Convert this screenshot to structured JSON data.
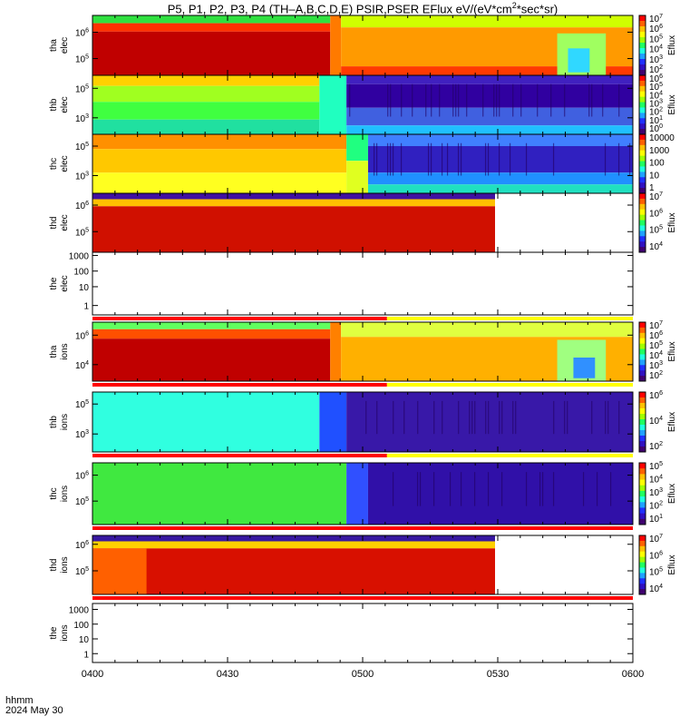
{
  "title": {
    "prefix": "P5, P1, P2, P3, P4 (TH–A,B,C,D,E) PSIR,PSER EFlux eV/(eV*cm",
    "sup": "2",
    "suffix": "*sec*sr)"
  },
  "footer": {
    "line1": "hhmm",
    "line2": "2024 May 30"
  },
  "chart_data": {
    "type": "heatmap",
    "x_axis": {
      "range": [
        "0400",
        "0600"
      ],
      "ticks": [
        "0400",
        "0430",
        "0500",
        "0530",
        "0600"
      ]
    },
    "colors": {
      "red": "#ff0000",
      "yellow": "#ffff00",
      "frame": "#000000"
    },
    "panels": [
      {
        "name": "tha-elec",
        "ylabel_top": "tha",
        "ylabel_bottom": "elec",
        "yticks": [
          {
            "base": "10",
            "exp": "6",
            "f": 0.28
          },
          {
            "base": "10",
            "exp": "5",
            "f": 0.72
          }
        ],
        "colorbar": {
          "label": "Eflux",
          "ticks": [
            {
              "base": "10",
              "exp": "7"
            },
            {
              "base": "10",
              "exp": "6"
            },
            {
              "base": "10",
              "exp": "5"
            },
            {
              "base": "10",
              "exp": "4"
            },
            {
              "base": "10",
              "exp": "3"
            },
            {
              "base": "10",
              "exp": "2"
            }
          ]
        },
        "bars": [],
        "regions": [
          {
            "x0": 0.0,
            "x1": 0.44,
            "y0": 0.0,
            "y1": 0.13,
            "color": "#30e040"
          },
          {
            "x0": 0.0,
            "x1": 0.44,
            "y0": 0.13,
            "y1": 0.27,
            "color": "#ff3000"
          },
          {
            "x0": 0.0,
            "x1": 0.44,
            "y0": 0.27,
            "y1": 1.0,
            "color": "#c00000"
          },
          {
            "x0": 0.44,
            "x1": 0.46,
            "y0": 0.0,
            "y1": 1.0,
            "color": "#ff7a00"
          },
          {
            "x0": 0.46,
            "x1": 1.0,
            "y0": 0.0,
            "y1": 0.2,
            "color": "#d0ff00"
          },
          {
            "x0": 0.46,
            "x1": 1.0,
            "y0": 0.2,
            "y1": 0.85,
            "color": "#ff9a00"
          },
          {
            "x0": 0.46,
            "x1": 1.0,
            "y0": 0.85,
            "y1": 1.0,
            "color": "#ff3a00"
          },
          {
            "x0": 0.86,
            "x1": 0.95,
            "y0": 0.3,
            "y1": 1.0,
            "color": "#a0ff60"
          },
          {
            "x0": 0.88,
            "x1": 0.92,
            "y0": 0.55,
            "y1": 0.95,
            "color": "#30d8ff"
          }
        ]
      },
      {
        "name": "thb-elec",
        "ylabel_top": "thb",
        "ylabel_bottom": "elec",
        "yticks": [
          {
            "base": "10",
            "exp": "5",
            "f": 0.22
          },
          {
            "base": "10",
            "exp": "3",
            "f": 0.72
          }
        ],
        "colorbar": {
          "label": "Eflux",
          "ticks": [
            {
              "base": "10",
              "exp": "6"
            },
            {
              "base": "10",
              "exp": "5"
            },
            {
              "base": "10",
              "exp": "4"
            },
            {
              "base": "10",
              "exp": "3"
            },
            {
              "base": "10",
              "exp": "2"
            },
            {
              "base": "10",
              "exp": "1"
            },
            {
              "base": "10",
              "exp": "0"
            }
          ]
        },
        "bars": [],
        "regions": [
          {
            "x0": 0.0,
            "x1": 0.42,
            "y0": 0.0,
            "y1": 0.18,
            "color": "#ffd000"
          },
          {
            "x0": 0.0,
            "x1": 0.42,
            "y0": 0.18,
            "y1": 0.45,
            "color": "#a0ff20"
          },
          {
            "x0": 0.0,
            "x1": 0.42,
            "y0": 0.45,
            "y1": 0.75,
            "color": "#40ff40"
          },
          {
            "x0": 0.0,
            "x1": 0.42,
            "y0": 0.75,
            "y1": 1.0,
            "color": "#20e0a0"
          },
          {
            "x0": 0.42,
            "x1": 0.47,
            "y0": 0.0,
            "y1": 1.0,
            "color": "#20ffc0"
          },
          {
            "x0": 0.47,
            "x1": 1.0,
            "y0": 0.0,
            "y1": 0.15,
            "color": "#4020c0"
          },
          {
            "x0": 0.47,
            "x1": 1.0,
            "y0": 0.15,
            "y1": 0.55,
            "color": "#3000a0"
          },
          {
            "x0": 0.47,
            "x1": 1.0,
            "y0": 0.55,
            "y1": 0.85,
            "color": "#4060e0"
          },
          {
            "x0": 0.47,
            "x1": 1.0,
            "y0": 0.85,
            "y1": 1.0,
            "color": "#20c0ff"
          }
        ]
      },
      {
        "name": "thc-elec",
        "ylabel_top": "thc",
        "ylabel_bottom": "elec",
        "yticks": [
          {
            "base": "10",
            "exp": "5",
            "f": 0.2
          },
          {
            "base": "10",
            "exp": "3",
            "f": 0.7
          }
        ],
        "colorbar": {
          "label": "",
          "ticks": [
            {
              "text": "10000"
            },
            {
              "text": "1000"
            },
            {
              "text": "100"
            },
            {
              "text": "10"
            },
            {
              "text": "1"
            }
          ]
        },
        "bars": [],
        "regions": [
          {
            "x0": 0.0,
            "x1": 0.47,
            "y0": 0.0,
            "y1": 0.25,
            "color": "#ff9000"
          },
          {
            "x0": 0.0,
            "x1": 0.47,
            "y0": 0.25,
            "y1": 0.65,
            "color": "#ffc800"
          },
          {
            "x0": 0.0,
            "x1": 0.47,
            "y0": 0.65,
            "y1": 1.0,
            "color": "#ffff20"
          },
          {
            "x0": 0.47,
            "x1": 0.51,
            "y0": 0.0,
            "y1": 0.45,
            "color": "#20ff80"
          },
          {
            "x0": 0.47,
            "x1": 0.51,
            "y0": 0.45,
            "y1": 1.0,
            "color": "#e0ff20"
          },
          {
            "x0": 0.51,
            "x1": 1.0,
            "y0": 0.0,
            "y1": 0.2,
            "color": "#4080ff"
          },
          {
            "x0": 0.51,
            "x1": 1.0,
            "y0": 0.2,
            "y1": 0.65,
            "color": "#3020c0"
          },
          {
            "x0": 0.51,
            "x1": 1.0,
            "y0": 0.65,
            "y1": 0.85,
            "color": "#2090ff"
          },
          {
            "x0": 0.51,
            "x1": 1.0,
            "y0": 0.85,
            "y1": 1.0,
            "color": "#20e0c0"
          }
        ]
      },
      {
        "name": "thd-elec",
        "ylabel_top": "thd",
        "ylabel_bottom": "elec",
        "yticks": [
          {
            "base": "10",
            "exp": "6",
            "f": 0.2
          },
          {
            "base": "10",
            "exp": "5",
            "f": 0.65
          }
        ],
        "colorbar": {
          "label": "Eflux",
          "ticks": [
            {
              "base": "10",
              "exp": "7"
            },
            {
              "base": "10",
              "exp": "6"
            },
            {
              "base": "10",
              "exp": "5"
            },
            {
              "base": "10",
              "exp": "4"
            }
          ]
        },
        "bars": [],
        "regions": [
          {
            "x0": 0.0,
            "x1": 0.745,
            "y0": 0.0,
            "y1": 0.1,
            "color": "#4010a0"
          },
          {
            "x0": 0.0,
            "x1": 0.745,
            "y0": 0.1,
            "y1": 0.22,
            "color": "#ffc000"
          },
          {
            "x0": 0.0,
            "x1": 0.745,
            "y0": 0.22,
            "y1": 1.0,
            "color": "#d01000"
          },
          {
            "x0": 0.745,
            "x1": 1.0,
            "y0": 0.0,
            "y1": 1.0,
            "color": "#ffffff"
          }
        ]
      },
      {
        "name": "the-elec",
        "ylabel_top": "the",
        "ylabel_bottom": "elec",
        "yticks": [
          {
            "text": "1000",
            "f": 0.05
          },
          {
            "text": "100",
            "f": 0.3
          },
          {
            "text": "10",
            "f": 0.55
          },
          {
            "text": "1",
            "f": 0.85
          }
        ],
        "colorbar": null,
        "bars": [
          {
            "x0": 0.0,
            "x1": 0.545,
            "color": "#ff0000"
          },
          {
            "x0": 0.545,
            "x1": 1.0,
            "color": "#ffff00"
          }
        ],
        "regions": []
      },
      {
        "name": "tha-ions",
        "ylabel_top": "tha",
        "ylabel_bottom": "ions",
        "yticks": [
          {
            "base": "10",
            "exp": "6",
            "f": 0.22
          },
          {
            "base": "10",
            "exp": "4",
            "f": 0.72
          }
        ],
        "colorbar": {
          "label": "Eflux",
          "ticks": [
            {
              "base": "10",
              "exp": "7"
            },
            {
              "base": "10",
              "exp": "6"
            },
            {
              "base": "10",
              "exp": "5"
            },
            {
              "base": "10",
              "exp": "4"
            },
            {
              "base": "10",
              "exp": "3"
            },
            {
              "base": "10",
              "exp": "2"
            }
          ]
        },
        "bars": [
          {
            "x0": 0.0,
            "x1": 0.545,
            "color": "#ff0000"
          },
          {
            "x0": 0.545,
            "x1": 1.0,
            "color": "#ffff00"
          }
        ],
        "regions": [
          {
            "x0": 0.0,
            "x1": 0.44,
            "y0": 0.0,
            "y1": 0.12,
            "color": "#60ff60"
          },
          {
            "x0": 0.0,
            "x1": 0.44,
            "y0": 0.12,
            "y1": 0.28,
            "color": "#ff5000"
          },
          {
            "x0": 0.0,
            "x1": 0.44,
            "y0": 0.28,
            "y1": 1.0,
            "color": "#c00000"
          },
          {
            "x0": 0.44,
            "x1": 0.46,
            "y0": 0.0,
            "y1": 1.0,
            "color": "#ff8000"
          },
          {
            "x0": 0.46,
            "x1": 1.0,
            "y0": 0.0,
            "y1": 0.25,
            "color": "#e0ff40"
          },
          {
            "x0": 0.46,
            "x1": 1.0,
            "y0": 0.25,
            "y1": 1.0,
            "color": "#ffb000"
          },
          {
            "x0": 0.86,
            "x1": 0.95,
            "y0": 0.3,
            "y1": 1.0,
            "color": "#a0ff80"
          },
          {
            "x0": 0.89,
            "x1": 0.93,
            "y0": 0.6,
            "y1": 0.95,
            "color": "#3090ff"
          }
        ]
      },
      {
        "name": "thb-ions",
        "ylabel_top": "thb",
        "ylabel_bottom": "ions",
        "yticks": [
          {
            "base": "10",
            "exp": "5",
            "f": 0.2
          },
          {
            "base": "10",
            "exp": "3",
            "f": 0.7
          }
        ],
        "colorbar": {
          "label": "Eflux",
          "ticks": [
            {
              "base": "10",
              "exp": "6"
            },
            {
              "base": "10",
              "exp": "4"
            },
            {
              "base": "10",
              "exp": "2"
            }
          ]
        },
        "bars": [
          {
            "x0": 0.0,
            "x1": 0.545,
            "color": "#ff0000"
          },
          {
            "x0": 0.545,
            "x1": 1.0,
            "color": "#ffff00"
          }
        ],
        "regions": [
          {
            "x0": 0.0,
            "x1": 0.42,
            "y0": 0.0,
            "y1": 1.0,
            "color": "#30ffe0"
          },
          {
            "x0": 0.42,
            "x1": 0.47,
            "y0": 0.0,
            "y1": 1.0,
            "color": "#2050ff"
          },
          {
            "x0": 0.47,
            "x1": 1.0,
            "y0": 0.0,
            "y1": 1.0,
            "color": "#3818a8"
          }
        ]
      },
      {
        "name": "thc-ions",
        "ylabel_top": "thc",
        "ylabel_bottom": "ions",
        "yticks": [
          {
            "base": "10",
            "exp": "6",
            "f": 0.2
          },
          {
            "base": "10",
            "exp": "5",
            "f": 0.62
          }
        ],
        "colorbar": {
          "label": "Eflux",
          "ticks": [
            {
              "base": "10",
              "exp": "5"
            },
            {
              "base": "10",
              "exp": "4"
            },
            {
              "base": "10",
              "exp": "3"
            },
            {
              "base": "10",
              "exp": "2"
            },
            {
              "base": "10",
              "exp": "1"
            }
          ]
        },
        "bars": [
          {
            "x0": 0.0,
            "x1": 1.0,
            "color": "#ff0000"
          }
        ],
        "regions": [
          {
            "x0": 0.0,
            "x1": 0.47,
            "y0": 0.0,
            "y1": 1.0,
            "color": "#40e840"
          },
          {
            "x0": 0.47,
            "x1": 0.51,
            "y0": 0.0,
            "y1": 1.0,
            "color": "#3050ff"
          },
          {
            "x0": 0.51,
            "x1": 1.0,
            "y0": 0.0,
            "y1": 1.0,
            "color": "#3010a8"
          }
        ]
      },
      {
        "name": "thd-ions",
        "ylabel_top": "thd",
        "ylabel_bottom": "ions",
        "yticks": [
          {
            "base": "10",
            "exp": "6",
            "f": 0.15
          },
          {
            "base": "10",
            "exp": "5",
            "f": 0.6
          }
        ],
        "colorbar": {
          "label": "Eflux",
          "ticks": [
            {
              "base": "10",
              "exp": "7"
            },
            {
              "base": "10",
              "exp": "6"
            },
            {
              "base": "10",
              "exp": "5"
            },
            {
              "base": "10",
              "exp": "4"
            }
          ]
        },
        "bars": [
          {
            "x0": 0.0,
            "x1": 1.0,
            "color": "#ff0000"
          }
        ],
        "regions": [
          {
            "x0": 0.0,
            "x1": 0.745,
            "y0": 0.0,
            "y1": 0.1,
            "color": "#3818a0"
          },
          {
            "x0": 0.0,
            "x1": 0.745,
            "y0": 0.1,
            "y1": 0.22,
            "color": "#ffd000"
          },
          {
            "x0": 0.0,
            "x1": 0.745,
            "y0": 0.22,
            "y1": 1.0,
            "color": "#d81000"
          },
          {
            "x0": 0.0,
            "x1": 0.1,
            "y0": 0.22,
            "y1": 1.0,
            "color": "#ff6000"
          },
          {
            "x0": 0.745,
            "x1": 1.0,
            "y0": 0.0,
            "y1": 1.0,
            "color": "#ffffff"
          }
        ]
      },
      {
        "name": "the-ions",
        "ylabel_top": "the",
        "ylabel_bottom": "ions",
        "yticks": [
          {
            "text": "1000",
            "f": 0.1
          },
          {
            "text": "100",
            "f": 0.35
          },
          {
            "text": "10",
            "f": 0.6
          },
          {
            "text": "1",
            "f": 0.85
          }
        ],
        "colorbar": null,
        "bars": [],
        "regions": []
      }
    ]
  }
}
